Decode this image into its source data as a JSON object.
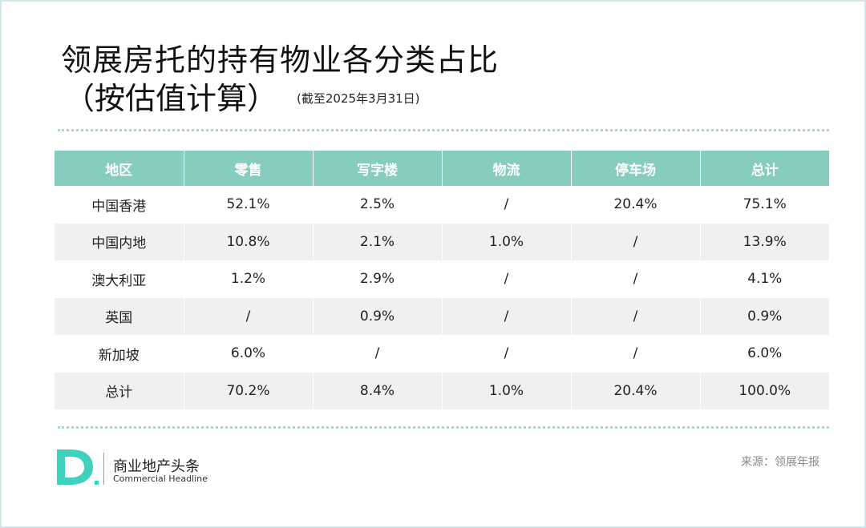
{
  "header": {
    "title_line1": "领展房托的持有物业各分类占比",
    "title_line2": "（按估值计算）",
    "subtitle": "(截至2025年3月31日)"
  },
  "chart_data": {
    "type": "table",
    "columns": [
      "地区",
      "零售",
      "写字楼",
      "物流",
      "停车场",
      "总计"
    ],
    "rows": [
      [
        "中国香港",
        "52.1%",
        "2.5%",
        "/",
        "20.4%",
        "75.1%"
      ],
      [
        "中国内地",
        "10.8%",
        "2.1%",
        "1.0%",
        "/",
        "13.9%"
      ],
      [
        "澳大利亚",
        "1.2%",
        "2.9%",
        "/",
        "/",
        "4.1%"
      ],
      [
        "英国",
        "/",
        "0.9%",
        "/",
        "/",
        "0.9%"
      ],
      [
        "新加坡",
        "6.0%",
        "/",
        "/",
        "/",
        "6.0%"
      ],
      [
        "总计",
        "70.2%",
        "8.4%",
        "1.0%",
        "20.4%",
        "100.0%"
      ]
    ]
  },
  "footer": {
    "brand_cn": "商业地产头条",
    "brand_en": "Commercial Headline",
    "source": "来源：领展年报"
  },
  "colors": {
    "header_bg": "#86cdbf",
    "stripe": "#f0f0f0",
    "accent": "#3fd1c0"
  }
}
